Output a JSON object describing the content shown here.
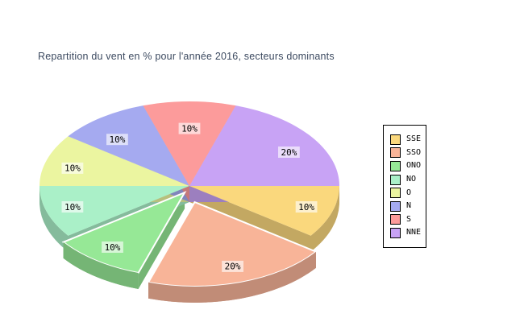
{
  "chart_data": {
    "type": "pie",
    "title": "Repartition du vent en % pour l'année 2016, secteurs dominants",
    "legend_position": "right",
    "direction": "clockwise",
    "start_angle_deg": 0,
    "projection": "3d",
    "slices": [
      {
        "label": "SSE",
        "value": 10,
        "display": "10%",
        "color": "#FAD87D",
        "explode": 0
      },
      {
        "label": "SSO",
        "value": 20,
        "display": "20%",
        "color": "#F8B498",
        "explode": 21
      },
      {
        "label": "ONO",
        "value": 10,
        "display": "10%",
        "color": "#96E896",
        "explode": 10
      },
      {
        "label": "NO",
        "value": 10,
        "display": "10%",
        "color": "#AAF0C8",
        "explode": 0
      },
      {
        "label": "O",
        "value": 10,
        "display": "10%",
        "color": "#EBF5A0",
        "explode": 0
      },
      {
        "label": "N",
        "value": 10,
        "display": "10%",
        "color": "#A5AAF0",
        "explode": 0
      },
      {
        "label": "S",
        "value": 10,
        "display": "10%",
        "color": "#FC9B9B",
        "explode": 0
      },
      {
        "label": "NNE",
        "value": 20,
        "display": "20%",
        "color": "#C8A3F5",
        "explode": 0
      }
    ]
  }
}
